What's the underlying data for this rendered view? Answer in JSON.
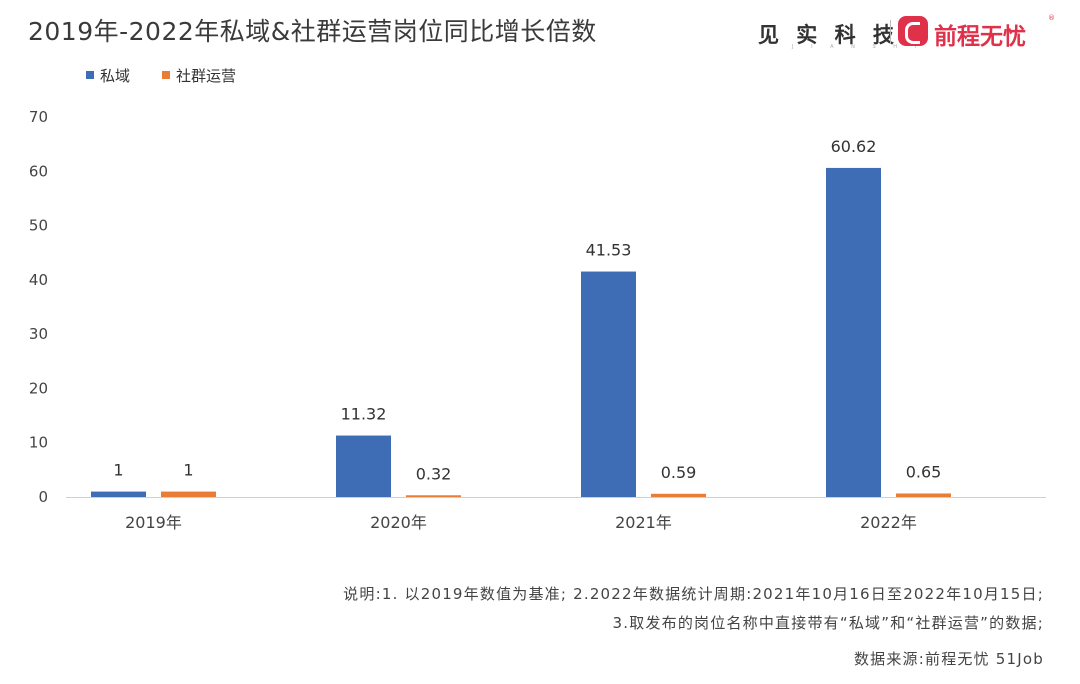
{
  "header": {
    "title": "2019年-2022年私域&社群运营岗位同比增长倍数",
    "brand_left": "见 实 科 技",
    "brand_left_sub": "J I A N S H I",
    "brand_right": "前程无忧",
    "brand_right_mark": "®"
  },
  "legend": [
    {
      "label": "私域",
      "color": "#3e6db5"
    },
    {
      "label": "社群运营",
      "color": "#ea7d35"
    }
  ],
  "chart_data": {
    "type": "bar",
    "categories": [
      "2019年",
      "2020年",
      "2021年",
      "2022年"
    ],
    "series": [
      {
        "name": "私域",
        "values": [
          1,
          11.32,
          41.53,
          60.62
        ],
        "labels": [
          "1",
          "11.32",
          "41.53",
          "60.62"
        ],
        "color": "#3e6db5"
      },
      {
        "name": "社群运营",
        "values": [
          1,
          0.32,
          0.59,
          0.65
        ],
        "labels": [
          "1",
          "0.32",
          "0.59",
          "0.65"
        ],
        "color": "#ea7d35"
      }
    ],
    "yticks": [
      0,
      10,
      20,
      30,
      40,
      50,
      60,
      70
    ],
    "ylim": [
      0,
      70
    ],
    "title": "2019年-2022年私域&社群运营岗位同比增长倍数",
    "xlabel": "",
    "ylabel": "",
    "grid": false,
    "legend_position": "top-left"
  },
  "notes": {
    "line1": "说明:1. 以2019年数值为基准; 2.2022年数据统计周期:2021年10月16日至2022年10月15日;",
    "line2": "3.取发布的岗位名称中直接带有“私域”和“社群运营”的数据;",
    "source": "数据来源:前程无忧 51Job"
  }
}
